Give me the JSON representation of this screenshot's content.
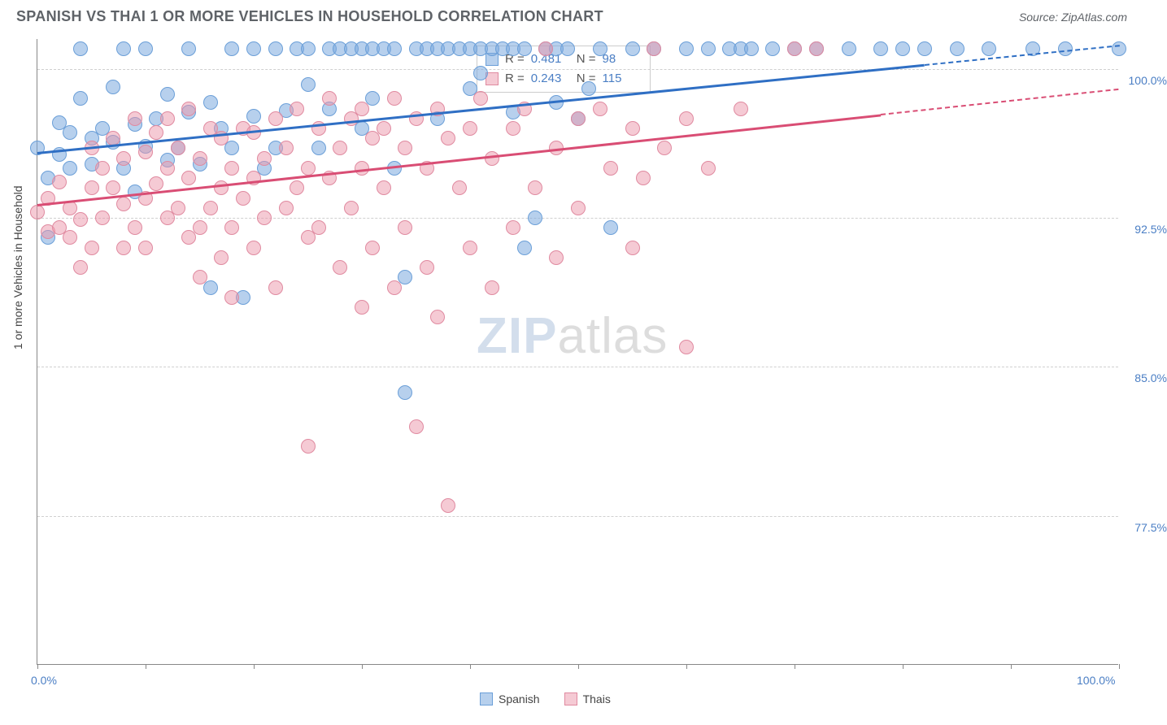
{
  "title": "SPANISH VS THAI 1 OR MORE VEHICLES IN HOUSEHOLD CORRELATION CHART",
  "source_label": "Source: ZipAtlas.com",
  "y_axis_title": "1 or more Vehicles in Household",
  "watermark": {
    "zip": "ZIP",
    "atlas": "atlas"
  },
  "chart": {
    "type": "scatter",
    "x_min": 0,
    "x_max": 100,
    "y_min": 70,
    "y_max": 101.5,
    "background_color": "#ffffff",
    "grid_color": "#d0d0d0",
    "axis_color": "#888888",
    "tick_label_color": "#4a7ec4",
    "y_ticks": [
      {
        "v": 100.0,
        "label": "100.0%"
      },
      {
        "v": 92.5,
        "label": "92.5%"
      },
      {
        "v": 85.0,
        "label": "85.0%"
      },
      {
        "v": 77.5,
        "label": "77.5%"
      }
    ],
    "x_tick_positions": [
      0,
      10,
      20,
      30,
      40,
      50,
      60,
      70,
      80,
      90,
      100
    ],
    "x_labels": [
      {
        "v": 0,
        "label": "0.0%"
      },
      {
        "v": 100,
        "label": "100.0%"
      }
    ],
    "point_radius": 9,
    "series": [
      {
        "name": "Spanish",
        "fill": "rgba(123,170,222,0.55)",
        "stroke": "#6b9fd8",
        "trend_color": "#2f6fc4",
        "R": "0.481",
        "N": "98",
        "trend": {
          "x1": 0,
          "y1": 95.8,
          "x2": 100,
          "y2": 101.2,
          "dash_from_x": 82
        },
        "points": [
          [
            0,
            96.0
          ],
          [
            1,
            94.5
          ],
          [
            1,
            91.5
          ],
          [
            2,
            95.7
          ],
          [
            2,
            97.3
          ],
          [
            3,
            96.8
          ],
          [
            3,
            95.0
          ],
          [
            4,
            98.5
          ],
          [
            4,
            101.0
          ],
          [
            5,
            96.5
          ],
          [
            5,
            95.2
          ],
          [
            6,
            97.0
          ],
          [
            7,
            99.1
          ],
          [
            7,
            96.3
          ],
          [
            8,
            101.0
          ],
          [
            8,
            95.0
          ],
          [
            9,
            97.2
          ],
          [
            9,
            93.8
          ],
          [
            10,
            101.0
          ],
          [
            10,
            96.1
          ],
          [
            11,
            97.5
          ],
          [
            12,
            95.4
          ],
          [
            12,
            98.7
          ],
          [
            13,
            96.0
          ],
          [
            14,
            101.0
          ],
          [
            14,
            97.8
          ],
          [
            15,
            95.2
          ],
          [
            16,
            98.3
          ],
          [
            16,
            89.0
          ],
          [
            17,
            97.0
          ],
          [
            18,
            101.0
          ],
          [
            18,
            96.0
          ],
          [
            19,
            88.5
          ],
          [
            20,
            101.0
          ],
          [
            20,
            97.6
          ],
          [
            21,
            95.0
          ],
          [
            22,
            101.0
          ],
          [
            22,
            96.0
          ],
          [
            23,
            97.9
          ],
          [
            24,
            101.0
          ],
          [
            25,
            99.2
          ],
          [
            25,
            101.0
          ],
          [
            26,
            96.0
          ],
          [
            27,
            101.0
          ],
          [
            27,
            98.0
          ],
          [
            28,
            101.0
          ],
          [
            29,
            101.0
          ],
          [
            30,
            101.0
          ],
          [
            30,
            97.0
          ],
          [
            31,
            101.0
          ],
          [
            31,
            98.5
          ],
          [
            32,
            101.0
          ],
          [
            33,
            101.0
          ],
          [
            33,
            95.0
          ],
          [
            34,
            83.7
          ],
          [
            34,
            89.5
          ],
          [
            35,
            101.0
          ],
          [
            36,
            101.0
          ],
          [
            37,
            101.0
          ],
          [
            37,
            97.5
          ],
          [
            38,
            101.0
          ],
          [
            39,
            101.0
          ],
          [
            40,
            101.0
          ],
          [
            40,
            99.0
          ],
          [
            41,
            101.0
          ],
          [
            41,
            99.8
          ],
          [
            42,
            101.0
          ],
          [
            43,
            101.0
          ],
          [
            44,
            101.0
          ],
          [
            44,
            97.8
          ],
          [
            45,
            101.0
          ],
          [
            45,
            91.0
          ],
          [
            46,
            92.5
          ],
          [
            47,
            101.0
          ],
          [
            48,
            101.0
          ],
          [
            48,
            98.3
          ],
          [
            49,
            101.0
          ],
          [
            50,
            97.5
          ],
          [
            51,
            99.0
          ],
          [
            52,
            101.0
          ],
          [
            53,
            92.0
          ],
          [
            55,
            101.0
          ],
          [
            57,
            101.0
          ],
          [
            60,
            101.0
          ],
          [
            62,
            101.0
          ],
          [
            64,
            101.0
          ],
          [
            65,
            101.0
          ],
          [
            66,
            101.0
          ],
          [
            68,
            101.0
          ],
          [
            70,
            101.0
          ],
          [
            72,
            101.0
          ],
          [
            75,
            101.0
          ],
          [
            78,
            101.0
          ],
          [
            80,
            101.0
          ],
          [
            82,
            101.0
          ],
          [
            85,
            101.0
          ],
          [
            88,
            101.0
          ],
          [
            92,
            101.0
          ],
          [
            95,
            101.0
          ],
          [
            100,
            101.0
          ]
        ]
      },
      {
        "name": "Thais",
        "fill": "rgba(235,150,170,0.50)",
        "stroke": "#e08aa0",
        "trend_color": "#d94d74",
        "R": "0.243",
        "N": "115",
        "trend": {
          "x1": 0,
          "y1": 93.2,
          "x2": 100,
          "y2": 99.0,
          "dash_from_x": 78
        },
        "points": [
          [
            0,
            92.8
          ],
          [
            1,
            93.5
          ],
          [
            1,
            91.8
          ],
          [
            2,
            92.0
          ],
          [
            2,
            94.3
          ],
          [
            3,
            93.0
          ],
          [
            3,
            91.5
          ],
          [
            4,
            92.4
          ],
          [
            4,
            90.0
          ],
          [
            5,
            94.0
          ],
          [
            5,
            96.0
          ],
          [
            5,
            91.0
          ],
          [
            6,
            92.5
          ],
          [
            6,
            95.0
          ],
          [
            7,
            94.0
          ],
          [
            7,
            96.5
          ],
          [
            8,
            93.2
          ],
          [
            8,
            91.0
          ],
          [
            8,
            95.5
          ],
          [
            9,
            97.5
          ],
          [
            9,
            92.0
          ],
          [
            10,
            93.5
          ],
          [
            10,
            95.8
          ],
          [
            10,
            91.0
          ],
          [
            11,
            94.2
          ],
          [
            11,
            96.8
          ],
          [
            12,
            92.5
          ],
          [
            12,
            95.0
          ],
          [
            12,
            97.5
          ],
          [
            13,
            93.0
          ],
          [
            13,
            96.0
          ],
          [
            14,
            91.5
          ],
          [
            14,
            94.5
          ],
          [
            14,
            98.0
          ],
          [
            15,
            92.0
          ],
          [
            15,
            95.5
          ],
          [
            15,
            89.5
          ],
          [
            16,
            93.0
          ],
          [
            16,
            97.0
          ],
          [
            17,
            90.5
          ],
          [
            17,
            94.0
          ],
          [
            17,
            96.5
          ],
          [
            18,
            92.0
          ],
          [
            18,
            88.5
          ],
          [
            18,
            95.0
          ],
          [
            19,
            93.5
          ],
          [
            19,
            97.0
          ],
          [
            20,
            91.0
          ],
          [
            20,
            94.5
          ],
          [
            20,
            96.8
          ],
          [
            21,
            92.5
          ],
          [
            21,
            95.5
          ],
          [
            22,
            97.5
          ],
          [
            22,
            89.0
          ],
          [
            23,
            93.0
          ],
          [
            23,
            96.0
          ],
          [
            24,
            94.0
          ],
          [
            24,
            98.0
          ],
          [
            25,
            91.5
          ],
          [
            25,
            95.0
          ],
          [
            25,
            81.0
          ],
          [
            26,
            97.0
          ],
          [
            26,
            92.0
          ],
          [
            27,
            98.5
          ],
          [
            27,
            94.5
          ],
          [
            28,
            96.0
          ],
          [
            28,
            90.0
          ],
          [
            29,
            97.5
          ],
          [
            29,
            93.0
          ],
          [
            30,
            95.0
          ],
          [
            30,
            98.0
          ],
          [
            30,
            88.0
          ],
          [
            31,
            96.5
          ],
          [
            31,
            91.0
          ],
          [
            32,
            97.0
          ],
          [
            32,
            94.0
          ],
          [
            33,
            98.5
          ],
          [
            33,
            89.0
          ],
          [
            34,
            96.0
          ],
          [
            34,
            92.0
          ],
          [
            35,
            97.5
          ],
          [
            35,
            82.0
          ],
          [
            36,
            95.0
          ],
          [
            36,
            90.0
          ],
          [
            37,
            98.0
          ],
          [
            37,
            87.5
          ],
          [
            38,
            96.5
          ],
          [
            38,
            78.0
          ],
          [
            39,
            94.0
          ],
          [
            40,
            97.0
          ],
          [
            40,
            91.0
          ],
          [
            41,
            98.5
          ],
          [
            42,
            95.5
          ],
          [
            42,
            89.0
          ],
          [
            44,
            97.0
          ],
          [
            44,
            92.0
          ],
          [
            45,
            98.0
          ],
          [
            46,
            94.0
          ],
          [
            47,
            101.0
          ],
          [
            48,
            96.0
          ],
          [
            48,
            90.5
          ],
          [
            50,
            97.5
          ],
          [
            50,
            93.0
          ],
          [
            52,
            98.0
          ],
          [
            53,
            95.0
          ],
          [
            55,
            97.0
          ],
          [
            55,
            91.0
          ],
          [
            56,
            94.5
          ],
          [
            57,
            101.0
          ],
          [
            58,
            96.0
          ],
          [
            60,
            97.5
          ],
          [
            60,
            86.0
          ],
          [
            62,
            95.0
          ],
          [
            65,
            98.0
          ],
          [
            70,
            101.0
          ],
          [
            72,
            101.0
          ]
        ]
      }
    ]
  },
  "legend_top": {
    "rows": [
      {
        "sw_fill": "rgba(123,170,222,0.55)",
        "sw_border": "#6b9fd8",
        "r_lbl": "R =",
        "r": "0.481",
        "n_lbl": "N =",
        "n": "98"
      },
      {
        "sw_fill": "rgba(235,150,170,0.50)",
        "sw_border": "#e08aa0",
        "r_lbl": "R =",
        "r": "0.243",
        "n_lbl": "N =",
        "n": "115"
      }
    ]
  },
  "legend_bottom": {
    "items": [
      {
        "label": "Spanish",
        "sw_fill": "rgba(123,170,222,0.55)",
        "sw_border": "#6b9fd8"
      },
      {
        "label": "Thais",
        "sw_fill": "rgba(235,150,170,0.50)",
        "sw_border": "#e08aa0"
      }
    ]
  }
}
